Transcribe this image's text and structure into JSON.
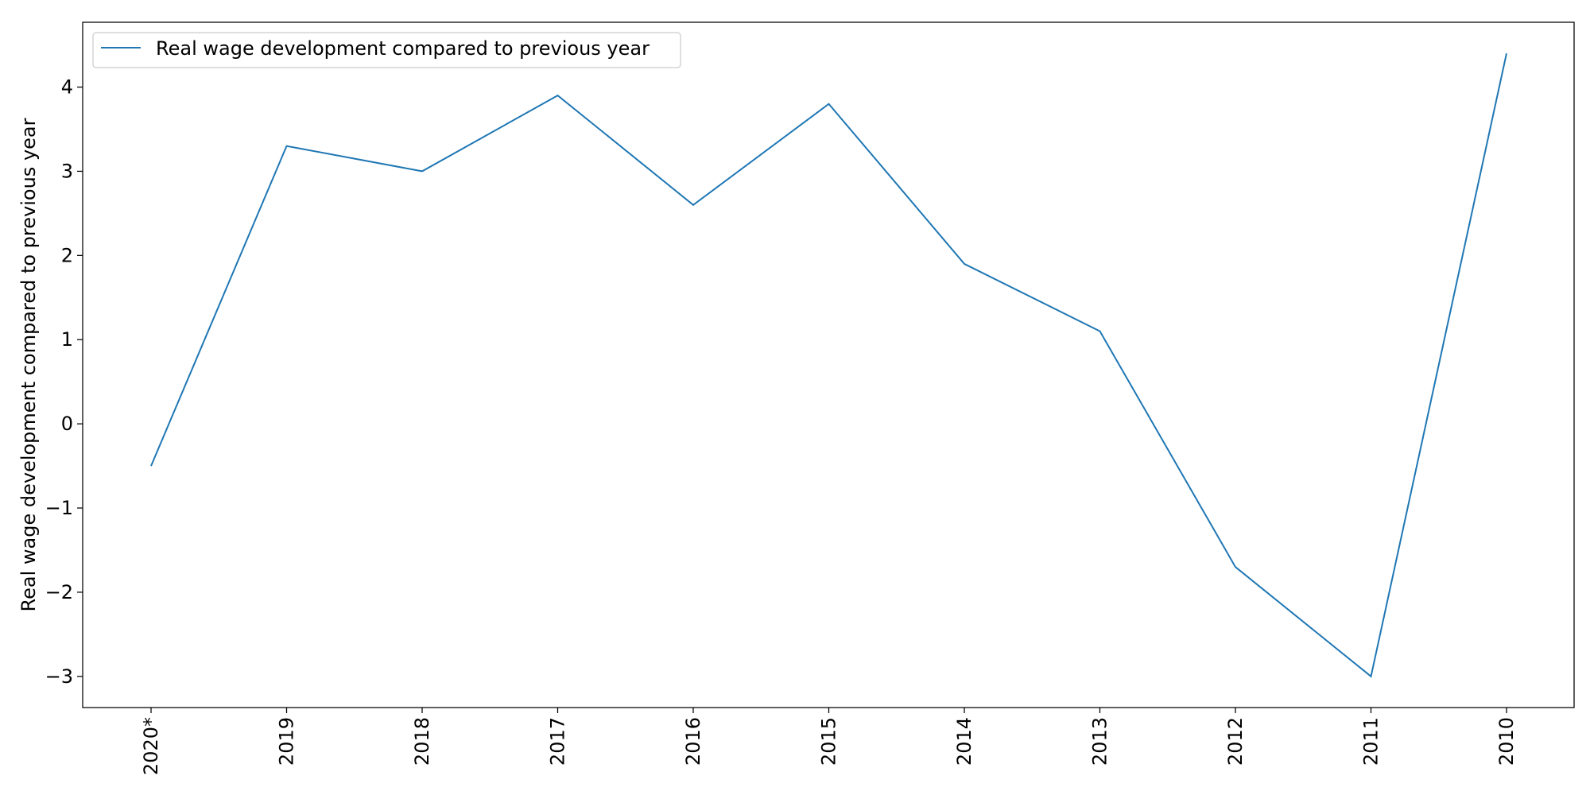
{
  "chart_data": {
    "type": "line",
    "categories": [
      "2020*",
      "2019",
      "2018",
      "2017",
      "2016",
      "2015",
      "2014",
      "2013",
      "2012",
      "2011",
      "2010"
    ],
    "series": [
      {
        "name": "Real wage development compared to previous year",
        "values": [
          -0.5,
          3.3,
          3.0,
          3.9,
          2.6,
          3.8,
          1.9,
          1.1,
          -1.7,
          -3.0,
          4.4
        ],
        "color": "#1f77b4"
      }
    ],
    "title": "",
    "xlabel": "",
    "ylabel": "Real wage development compared to previous year",
    "ylim": [
      -3.37,
      4.77
    ],
    "yticks": [
      -3,
      -2,
      -1,
      0,
      1,
      2,
      3,
      4
    ],
    "ytick_labels": [
      "−3",
      "−2",
      "−1",
      "0",
      "1",
      "2",
      "3",
      "4"
    ],
    "grid": false,
    "legend_position": "top-left"
  }
}
